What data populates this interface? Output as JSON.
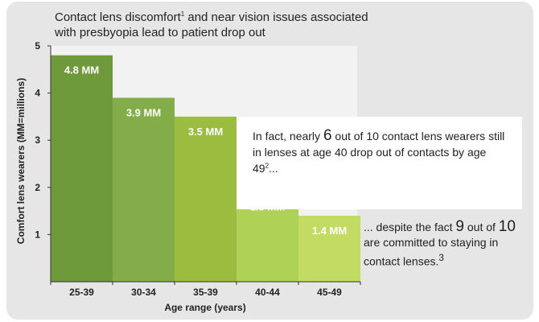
{
  "chart_data": {
    "type": "bar",
    "title_pre": "Contact lens discomfort",
    "title_sup": "1",
    "title_post": " and near vision issues associated with presbyopia lead to patient drop out",
    "xlabel": "Age range (years)",
    "ylabel": "Comfort lens wearers (MM=millions)",
    "categories": [
      "25-39",
      "30-34",
      "35-39",
      "40-44",
      "45-49"
    ],
    "values": [
      4.8,
      3.9,
      3.5,
      1.9,
      1.4
    ],
    "value_labels": [
      "4.8 MM",
      "3.9 MM",
      "3.5 MM",
      "1.9 MM",
      "1.4 MM"
    ],
    "yticks": [
      1,
      2,
      3,
      4,
      5
    ],
    "ylim": [
      0,
      5
    ],
    "colors": [
      "#6e9a3c",
      "#83ad48",
      "#9bbc3f",
      "#add256",
      "#c2db62"
    ],
    "plot_bg": "#f2f2f2",
    "label_color": "#ffffff"
  },
  "callout": {
    "pre": "In fact, nearly ",
    "big": "6",
    "post": " out of 10 contact lens wearers still in lenses at age 40 drop out of contacts by age 49",
    "sup": "2",
    "end": "..."
  },
  "note": {
    "pre": "... despite the fact ",
    "big1": "9",
    "mid": " out of ",
    "big2": "10",
    "post": " are committed to staying in contact lenses.",
    "sup": "3"
  }
}
